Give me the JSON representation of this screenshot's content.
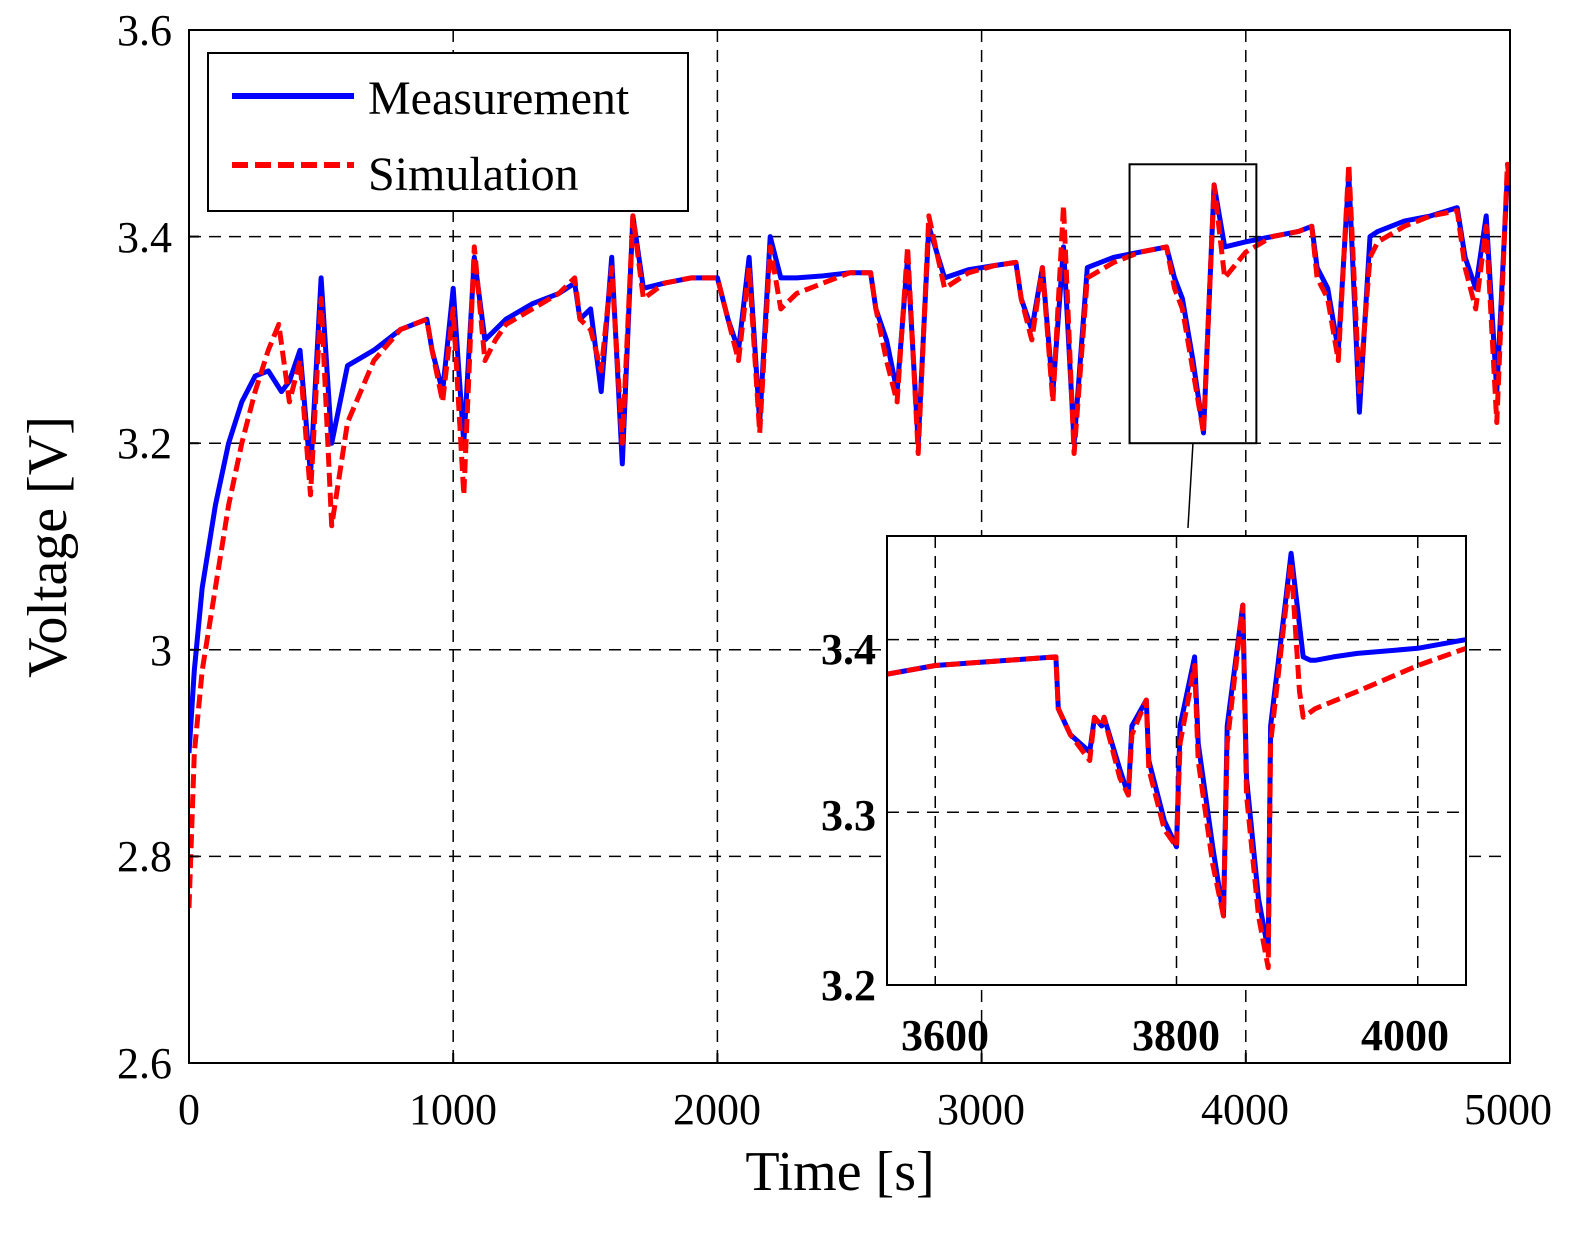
{
  "chart_data": [
    {
      "id": "main",
      "type": "line",
      "title": "",
      "xlabel": "Time [s]",
      "ylabel": "Voltage [V]",
      "xlim": [
        0,
        5000
      ],
      "ylim": [
        2.6,
        3.6
      ],
      "xticks": [
        0,
        1000,
        2000,
        3000,
        4000,
        5000
      ],
      "yticks": [
        2.6,
        2.8,
        3.0,
        3.2,
        3.4,
        3.6
      ],
      "xtick_labels": [
        "0",
        "1000",
        "2000",
        "3000",
        "4000",
        "5000"
      ],
      "ytick_labels": [
        "2.6",
        "2.8",
        "3",
        "3.2",
        "3.4",
        "3.6"
      ],
      "grid": true,
      "legend_position": "top-left",
      "colors": {
        "Measurement": "#0000ff",
        "Simulation": "#ff0000"
      },
      "series": [
        {
          "name": "Measurement",
          "style": "solid",
          "x": [
            0,
            20,
            50,
            100,
            150,
            200,
            250,
            300,
            350,
            380,
            420,
            460,
            500,
            540,
            600,
            700,
            800,
            900,
            920,
            960,
            1000,
            1040,
            1080,
            1120,
            1160,
            1200,
            1300,
            1400,
            1460,
            1480,
            1520,
            1560,
            1600,
            1640,
            1680,
            1720,
            1800,
            1900,
            2000,
            2040,
            2080,
            2120,
            2160,
            2200,
            2240,
            2300,
            2400,
            2500,
            2580,
            2600,
            2640,
            2680,
            2720,
            2760,
            2800,
            2860,
            2950,
            3050,
            3130,
            3150,
            3190,
            3230,
            3270,
            3310,
            3350,
            3400,
            3500,
            3600,
            3700,
            3730,
            3760,
            3800,
            3840,
            3880,
            3920,
            4000,
            4100,
            4200,
            4250,
            4270,
            4310,
            4350,
            4390,
            4430,
            4470,
            4500,
            4600,
            4700,
            4800,
            4830,
            4870,
            4910,
            4950,
            4990,
            5000
          ],
          "y": [
            2.9,
            2.98,
            3.06,
            3.14,
            3.2,
            3.24,
            3.265,
            3.27,
            3.25,
            3.26,
            3.29,
            3.17,
            3.36,
            3.2,
            3.275,
            3.29,
            3.31,
            3.32,
            3.29,
            3.25,
            3.35,
            3.2,
            3.38,
            3.3,
            3.31,
            3.32,
            3.335,
            3.345,
            3.355,
            3.32,
            3.33,
            3.25,
            3.38,
            3.18,
            3.42,
            3.35,
            3.355,
            3.36,
            3.36,
            3.32,
            3.29,
            3.38,
            3.22,
            3.4,
            3.36,
            3.36,
            3.362,
            3.365,
            3.365,
            3.33,
            3.3,
            3.25,
            3.38,
            3.2,
            3.41,
            3.36,
            3.368,
            3.372,
            3.375,
            3.34,
            3.31,
            3.37,
            3.25,
            3.39,
            3.2,
            3.37,
            3.38,
            3.385,
            3.39,
            3.36,
            3.34,
            3.28,
            3.21,
            3.45,
            3.39,
            3.395,
            3.4,
            3.405,
            3.41,
            3.37,
            3.35,
            3.29,
            3.46,
            3.23,
            3.4,
            3.405,
            3.415,
            3.42,
            3.428,
            3.38,
            3.35,
            3.42,
            3.25,
            3.46,
            3.44
          ]
        },
        {
          "name": "Simulation",
          "style": "dashed",
          "x": [
            0,
            20,
            50,
            100,
            150,
            200,
            250,
            300,
            340,
            380,
            420,
            460,
            500,
            540,
            600,
            700,
            800,
            900,
            920,
            960,
            1000,
            1040,
            1080,
            1120,
            1160,
            1200,
            1300,
            1400,
            1460,
            1480,
            1520,
            1560,
            1600,
            1640,
            1680,
            1720,
            1800,
            1900,
            2000,
            2040,
            2080,
            2120,
            2160,
            2200,
            2240,
            2300,
            2400,
            2500,
            2580,
            2600,
            2640,
            2680,
            2720,
            2760,
            2800,
            2860,
            2950,
            3050,
            3130,
            3150,
            3190,
            3230,
            3270,
            3310,
            3350,
            3400,
            3500,
            3600,
            3700,
            3730,
            3760,
            3800,
            3840,
            3880,
            3920,
            4000,
            4100,
            4200,
            4250,
            4270,
            4310,
            4350,
            4390,
            4430,
            4470,
            4500,
            4600,
            4700,
            4800,
            4830,
            4870,
            4910,
            4950,
            4990,
            5000
          ],
          "y": [
            2.75,
            2.9,
            2.98,
            3.06,
            3.14,
            3.2,
            3.25,
            3.29,
            3.315,
            3.24,
            3.28,
            3.15,
            3.34,
            3.12,
            3.22,
            3.28,
            3.31,
            3.32,
            3.29,
            3.24,
            3.33,
            3.15,
            3.39,
            3.28,
            3.3,
            3.315,
            3.33,
            3.345,
            3.36,
            3.32,
            3.31,
            3.27,
            3.37,
            3.2,
            3.42,
            3.34,
            3.355,
            3.36,
            3.36,
            3.32,
            3.28,
            3.37,
            3.21,
            3.39,
            3.33,
            3.345,
            3.355,
            3.365,
            3.365,
            3.33,
            3.28,
            3.24,
            3.39,
            3.19,
            3.42,
            3.35,
            3.365,
            3.372,
            3.375,
            3.34,
            3.3,
            3.37,
            3.24,
            3.43,
            3.19,
            3.36,
            3.375,
            3.385,
            3.39,
            3.35,
            3.33,
            3.27,
            3.21,
            3.45,
            3.36,
            3.385,
            3.4,
            3.405,
            3.41,
            3.36,
            3.34,
            3.28,
            3.47,
            3.25,
            3.38,
            3.395,
            3.41,
            3.42,
            3.425,
            3.37,
            3.33,
            3.41,
            3.22,
            3.47,
            3.45
          ]
        }
      ]
    },
    {
      "id": "inset",
      "type": "line",
      "title": "",
      "xlabel": "",
      "ylabel": "",
      "xlim": [
        3560,
        4040
      ],
      "ylim": [
        3.2,
        3.46
      ],
      "xticks": [
        3600,
        3800,
        4000
      ],
      "yticks": [
        3.2,
        3.3,
        3.4
      ],
      "xtick_labels": [
        "3600",
        "3800",
        "4000"
      ],
      "ytick_labels": [
        "3.2",
        "3.3",
        "3.4"
      ],
      "grid": true,
      "zoom_region": {
        "x": [
          3560,
          4040
        ],
        "y": [
          3.2,
          3.47
        ]
      },
      "series": [
        {
          "name": "Measurement",
          "style": "solid",
          "x": [
            3560,
            3600,
            3700,
            3702,
            3712,
            3728,
            3732,
            3738,
            3740,
            3753,
            3760,
            3763,
            3775,
            3777,
            3790,
            3800,
            3803,
            3815,
            3818,
            3830,
            3839,
            3842,
            3855,
            3858,
            3868,
            3876,
            3878,
            3890,
            3895,
            3905,
            3911,
            3915,
            3930,
            3950,
            4000,
            4040
          ],
          "y": [
            3.38,
            3.385,
            3.39,
            3.36,
            3.345,
            3.335,
            3.355,
            3.35,
            3.355,
            3.325,
            3.31,
            3.35,
            3.365,
            3.33,
            3.295,
            3.28,
            3.35,
            3.39,
            3.34,
            3.28,
            3.24,
            3.35,
            3.42,
            3.32,
            3.25,
            3.22,
            3.35,
            3.42,
            3.45,
            3.39,
            3.388,
            3.388,
            3.39,
            3.392,
            3.395,
            3.4
          ]
        },
        {
          "name": "Simulation",
          "style": "dashed",
          "x": [
            3560,
            3600,
            3700,
            3702,
            3712,
            3728,
            3732,
            3738,
            3740,
            3753,
            3760,
            3763,
            3775,
            3777,
            3790,
            3800,
            3803,
            3815,
            3818,
            3830,
            3839,
            3842,
            3855,
            3858,
            3868,
            3876,
            3878,
            3890,
            3895,
            3902,
            3905,
            3915,
            3950,
            4000,
            4040
          ],
          "y": [
            3.38,
            3.385,
            3.39,
            3.36,
            3.345,
            3.33,
            3.355,
            3.35,
            3.355,
            3.32,
            3.31,
            3.345,
            3.365,
            3.325,
            3.29,
            3.28,
            3.34,
            3.385,
            3.33,
            3.27,
            3.24,
            3.34,
            3.42,
            3.31,
            3.24,
            3.21,
            3.34,
            3.415,
            3.445,
            3.37,
            3.355,
            3.36,
            3.37,
            3.385,
            3.395
          ]
        }
      ]
    }
  ]
}
